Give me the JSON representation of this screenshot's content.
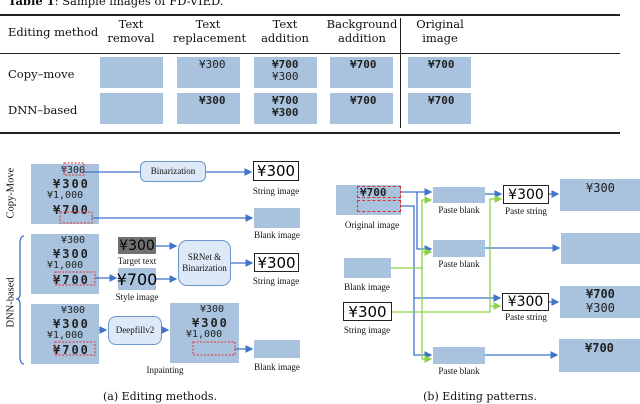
{
  "table": {
    "caption_label": "Table 1",
    "caption_text": ": Sample images of FD-VIED.",
    "headers": [
      "Editing method",
      "Text removal",
      "Text replacement",
      "Text addition",
      "Background addition",
      "Original image"
    ],
    "rows": [
      {
        "method": "Copy–move",
        "cells": [
          "",
          "¥300",
          "¥700\n¥300",
          "¥700",
          "¥700"
        ]
      },
      {
        "method": "DNN–based",
        "cells": [
          "",
          "¥300",
          "¥700\n¥300",
          "¥700",
          "¥700"
        ]
      }
    ]
  },
  "fig_a": {
    "caption": "(a) Editing methods.",
    "copy_move_label": "Copy-Move",
    "dnn_label": "DNN-based",
    "receipt_lines": [
      "¥300",
      "¥300",
      "¥1,000",
      "¥700"
    ],
    "binarization": "Binarization",
    "string_image_text": "¥300",
    "string_image_label": "String image",
    "blank_image_label": "Blank image",
    "target_text": "¥300",
    "target_text_label": "Target text",
    "style_text": "¥700",
    "style_image_label": "Style image",
    "srnet": "SRNet & Binarization",
    "deepfill": "Deepfillv2",
    "inpainting_label": "Inpainting"
  },
  "fig_b": {
    "caption": "(b) Editing patterns.",
    "original_text": "¥700",
    "original_label": "Original image",
    "blank_label": "Blank image",
    "string_text": "¥300",
    "string_label": "String image",
    "paste_blank": "Paste blank",
    "paste_string": "Paste string",
    "results": [
      [
        "¥300"
      ],
      [],
      [
        "¥700",
        "¥300"
      ],
      [
        "¥700"
      ]
    ]
  },
  "colors": {
    "arrow_blue": "#3f74c8",
    "arrow_green": "#8ed14a",
    "image_bg": "#a9c3de",
    "dashed_red": "#e03030"
  }
}
